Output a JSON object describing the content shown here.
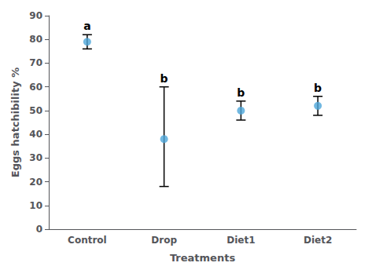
{
  "chart_data": {
    "type": "scatter",
    "categories": [
      "Control",
      "Drop",
      "Diet1",
      "Diet2"
    ],
    "values": [
      79,
      38,
      50,
      52
    ],
    "error_upper": [
      3,
      22,
      4,
      4
    ],
    "error_lower": [
      3,
      20,
      4,
      4
    ],
    "letters": [
      "a",
      "b",
      "b",
      "b"
    ],
    "xlabel": "Treatments",
    "ylabel": "Eggs hatchibility %",
    "ylim": [
      0,
      90
    ],
    "yticks": [
      0,
      10,
      20,
      30,
      40,
      50,
      60,
      70,
      80,
      90
    ],
    "color": "#4da6d9",
    "marker": "circle",
    "grid": false
  }
}
